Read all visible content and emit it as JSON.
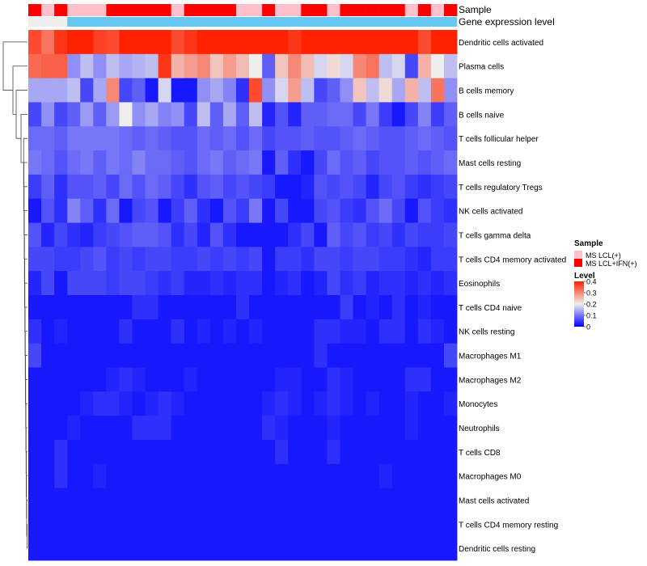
{
  "chart_data": {
    "type": "heatmap",
    "title": "",
    "annotation_tracks": {
      "sample_label": "Sample",
      "gene_label": "Gene expression level"
    },
    "sample_groups": [
      "MS LCL(+)",
      "MS LCL+IFN(+)"
    ],
    "sample_group_per_column": [
      1,
      0,
      1,
      0,
      0,
      0,
      1,
      1,
      1,
      1,
      1,
      0,
      1,
      1,
      1,
      1,
      0,
      0,
      1,
      0,
      0,
      1,
      1,
      0,
      1,
      1,
      1,
      1,
      1,
      0,
      1,
      0,
      1
    ],
    "rows": [
      "Dendritic cells activated",
      "Plasma cells",
      "B cells memory",
      "B cells naive",
      "T cells follicular helper",
      "Mast cells resting",
      "T cells regulatory  Tregs",
      "NK cells activated",
      "T cells gamma delta",
      "T cells CD4 memory activated",
      "Eosinophils",
      "T cells CD4 naive",
      "NK cells resting",
      "Macrophages M1",
      "Macrophages M2",
      "Monocytes",
      "Neutrophils",
      "T cells CD8",
      "Macrophages M0",
      "Mast cells activated",
      "T cells CD4 memory resting",
      "Dendritic cells resting"
    ],
    "values": [
      [
        0.36,
        0.32,
        0.38,
        0.44,
        0.4,
        0.37,
        0.36,
        0.4,
        0.42,
        0.4,
        0.44,
        0.36,
        0.38,
        0.4,
        0.42,
        0.4,
        0.4,
        0.44,
        0.44,
        0.44,
        0.38,
        0.4,
        0.44,
        0.44,
        0.42,
        0.42,
        0.4,
        0.44,
        0.44,
        0.42,
        0.36,
        0.4,
        0.42
      ],
      [
        0.33,
        0.34,
        0.34,
        0.12,
        0.16,
        0.12,
        0.16,
        0.14,
        0.15,
        0.16,
        0.38,
        0.26,
        0.28,
        0.3,
        0.24,
        0.28,
        0.25,
        0.2,
        0.08,
        0.24,
        0.3,
        0.25,
        0.18,
        0.22,
        0.18,
        0.3,
        0.32,
        0.16,
        0.18,
        0.06,
        0.26,
        0.2,
        0.16
      ],
      [
        0.14,
        0.14,
        0.14,
        0.16,
        0.06,
        0.14,
        0.3,
        0.06,
        0.08,
        0.02,
        0.18,
        0.02,
        0.02,
        0.12,
        0.14,
        0.11,
        0.04,
        0.36,
        0.12,
        0.18,
        0.28,
        0.16,
        0.06,
        0.08,
        0.12,
        0.24,
        0.16,
        0.22,
        0.14,
        0.26,
        0.16,
        0.32,
        0.12
      ],
      [
        0.06,
        0.12,
        0.06,
        0.08,
        0.13,
        0.08,
        0.13,
        0.2,
        0.12,
        0.14,
        0.11,
        0.12,
        0.06,
        0.16,
        0.08,
        0.14,
        0.08,
        0.16,
        0.03,
        0.07,
        0.03,
        0.08,
        0.08,
        0.09,
        0.09,
        0.06,
        0.1,
        0.05,
        0.02,
        0.06,
        0.11,
        0.05,
        0.08
      ],
      [
        0.09,
        0.09,
        0.08,
        0.1,
        0.1,
        0.1,
        0.1,
        0.09,
        0.08,
        0.09,
        0.08,
        0.07,
        0.07,
        0.09,
        0.08,
        0.09,
        0.07,
        0.09,
        0.06,
        0.07,
        0.07,
        0.08,
        0.07,
        0.07,
        0.08,
        0.09,
        0.08,
        0.07,
        0.07,
        0.08,
        0.09,
        0.08,
        0.07
      ],
      [
        0.1,
        0.09,
        0.07,
        0.09,
        0.1,
        0.08,
        0.1,
        0.09,
        0.11,
        0.09,
        0.09,
        0.08,
        0.07,
        0.09,
        0.1,
        0.08,
        0.09,
        0.1,
        0.02,
        0.08,
        0.04,
        0.02,
        0.06,
        0.09,
        0.07,
        0.08,
        0.06,
        0.07,
        0.07,
        0.08,
        0.07,
        0.08,
        0.09
      ],
      [
        0.05,
        0.08,
        0.04,
        0.07,
        0.07,
        0.08,
        0.06,
        0.09,
        0.07,
        0.09,
        0.08,
        0.06,
        0.04,
        0.07,
        0.08,
        0.06,
        0.07,
        0.06,
        0.05,
        0.02,
        0.02,
        0.03,
        0.07,
        0.06,
        0.07,
        0.06,
        0.03,
        0.06,
        0.07,
        0.05,
        0.04,
        0.05,
        0.06
      ],
      [
        0.02,
        0.07,
        0.04,
        0.11,
        0.08,
        0.04,
        0.09,
        0.02,
        0.06,
        0.07,
        0.02,
        0.05,
        0.08,
        0.04,
        0.02,
        0.07,
        0.05,
        0.1,
        0.02,
        0.06,
        0.02,
        0.02,
        0.06,
        0.07,
        0.05,
        0.04,
        0.07,
        0.09,
        0.06,
        0.02,
        0.07,
        0.05,
        0.04
      ],
      [
        0.07,
        0.03,
        0.06,
        0.04,
        0.03,
        0.05,
        0.06,
        0.07,
        0.08,
        0.08,
        0.07,
        0.04,
        0.06,
        0.03,
        0.07,
        0.04,
        0.02,
        0.02,
        0.02,
        0.02,
        0.04,
        0.06,
        0.02,
        0.08,
        0.06,
        0.07,
        0.05,
        0.06,
        0.04,
        0.06,
        0.05,
        0.05,
        0.06
      ],
      [
        0.06,
        0.06,
        0.05,
        0.05,
        0.06,
        0.07,
        0.05,
        0.06,
        0.05,
        0.06,
        0.06,
        0.05,
        0.05,
        0.06,
        0.05,
        0.06,
        0.05,
        0.06,
        0.02,
        0.05,
        0.05,
        0.04,
        0.06,
        0.06,
        0.05,
        0.06,
        0.06,
        0.05,
        0.05,
        0.04,
        0.03,
        0.05,
        0.05
      ],
      [
        0.03,
        0.06,
        0.02,
        0.06,
        0.06,
        0.06,
        0.05,
        0.06,
        0.06,
        0.05,
        0.04,
        0.05,
        0.03,
        0.03,
        0.04,
        0.03,
        0.04,
        0.04,
        0.02,
        0.03,
        0.04,
        0.02,
        0.03,
        0.06,
        0.04,
        0.05,
        0.03,
        0.04,
        0.04,
        0.03,
        0.04,
        0.03,
        0.04
      ],
      [
        0.02,
        0.02,
        0.02,
        0.02,
        0.02,
        0.02,
        0.02,
        0.02,
        0.04,
        0.04,
        0.02,
        0.02,
        0.02,
        0.02,
        0.02,
        0.02,
        0.04,
        0.02,
        0.02,
        0.02,
        0.02,
        0.02,
        0.02,
        0.02,
        0.05,
        0.02,
        0.03,
        0.02,
        0.04,
        0.02,
        0.03,
        0.02,
        0.02
      ],
      [
        0.04,
        0.02,
        0.03,
        0.02,
        0.02,
        0.02,
        0.02,
        0.04,
        0.02,
        0.02,
        0.02,
        0.04,
        0.02,
        0.03,
        0.02,
        0.03,
        0.02,
        0.03,
        0.02,
        0.02,
        0.02,
        0.02,
        0.04,
        0.04,
        0.03,
        0.03,
        0.02,
        0.04,
        0.04,
        0.02,
        0.04,
        0.03,
        0.02
      ],
      [
        0.06,
        0.02,
        0.02,
        0.02,
        0.02,
        0.02,
        0.02,
        0.02,
        0.02,
        0.02,
        0.02,
        0.02,
        0.02,
        0.02,
        0.02,
        0.02,
        0.02,
        0.02,
        0.02,
        0.02,
        0.02,
        0.02,
        0.04,
        0.02,
        0.02,
        0.02,
        0.02,
        0.02,
        0.02,
        0.02,
        0.02,
        0.02,
        0.06
      ],
      [
        0.02,
        0.02,
        0.02,
        0.02,
        0.02,
        0.02,
        0.03,
        0.04,
        0.03,
        0.02,
        0.02,
        0.02,
        0.03,
        0.02,
        0.02,
        0.02,
        0.02,
        0.02,
        0.02,
        0.03,
        0.03,
        0.02,
        0.02,
        0.04,
        0.03,
        0.02,
        0.02,
        0.02,
        0.02,
        0.04,
        0.04,
        0.02,
        0.02
      ],
      [
        0.02,
        0.02,
        0.02,
        0.02,
        0.03,
        0.04,
        0.04,
        0.03,
        0.02,
        0.03,
        0.04,
        0.03,
        0.02,
        0.02,
        0.02,
        0.02,
        0.02,
        0.02,
        0.03,
        0.04,
        0.03,
        0.02,
        0.03,
        0.04,
        0.03,
        0.02,
        0.03,
        0.02,
        0.02,
        0.03,
        0.02,
        0.02,
        0.03
      ],
      [
        0.02,
        0.02,
        0.02,
        0.03,
        0.02,
        0.02,
        0.02,
        0.02,
        0.04,
        0.04,
        0.04,
        0.02,
        0.02,
        0.02,
        0.02,
        0.02,
        0.02,
        0.02,
        0.04,
        0.03,
        0.02,
        0.02,
        0.02,
        0.03,
        0.02,
        0.02,
        0.02,
        0.02,
        0.02,
        0.03,
        0.02,
        0.02,
        0.02
      ],
      [
        0.02,
        0.02,
        0.04,
        0.02,
        0.02,
        0.02,
        0.02,
        0.02,
        0.02,
        0.02,
        0.02,
        0.02,
        0.02,
        0.02,
        0.02,
        0.02,
        0.02,
        0.02,
        0.02,
        0.04,
        0.02,
        0.02,
        0.02,
        0.04,
        0.02,
        0.02,
        0.02,
        0.02,
        0.02,
        0.02,
        0.02,
        0.02,
        0.02
      ],
      [
        0.02,
        0.02,
        0.04,
        0.02,
        0.02,
        0.03,
        0.02,
        0.02,
        0.02,
        0.02,
        0.02,
        0.02,
        0.02,
        0.02,
        0.02,
        0.02,
        0.02,
        0.02,
        0.02,
        0.02,
        0.02,
        0.02,
        0.02,
        0.02,
        0.02,
        0.02,
        0.02,
        0.03,
        0.02,
        0.02,
        0.02,
        0.02,
        0.02
      ],
      [
        0.02,
        0.02,
        0.02,
        0.02,
        0.02,
        0.02,
        0.02,
        0.02,
        0.02,
        0.02,
        0.02,
        0.02,
        0.02,
        0.02,
        0.02,
        0.02,
        0.02,
        0.02,
        0.02,
        0.02,
        0.02,
        0.02,
        0.02,
        0.02,
        0.02,
        0.02,
        0.02,
        0.02,
        0.02,
        0.02,
        0.02,
        0.02,
        0.02
      ],
      [
        0.02,
        0.02,
        0.02,
        0.02,
        0.02,
        0.02,
        0.02,
        0.02,
        0.02,
        0.02,
        0.02,
        0.02,
        0.02,
        0.02,
        0.02,
        0.02,
        0.02,
        0.02,
        0.02,
        0.02,
        0.02,
        0.02,
        0.02,
        0.02,
        0.02,
        0.02,
        0.02,
        0.02,
        0.02,
        0.02,
        0.02,
        0.02,
        0.02
      ],
      [
        0.02,
        0.02,
        0.02,
        0.02,
        0.02,
        0.02,
        0.02,
        0.02,
        0.02,
        0.02,
        0.02,
        0.02,
        0.02,
        0.02,
        0.02,
        0.02,
        0.02,
        0.02,
        0.02,
        0.02,
        0.02,
        0.02,
        0.02,
        0.02,
        0.02,
        0.02,
        0.02,
        0.02,
        0.02,
        0.02,
        0.02,
        0.02,
        0.02
      ]
    ],
    "color_scale": {
      "domain": [
        0,
        0.2,
        0.4
      ],
      "colors": [
        "#0000ff",
        "#eeeeee",
        "#ff2200"
      ]
    },
    "gene_track_color": "#64c8f0",
    "gene_track_left_color": "#eeeeee",
    "sample_colors": [
      "#ffc0cb",
      "#ff0000"
    ],
    "legend": {
      "sample_title": "Sample",
      "sample_entries": [
        "MS LCL(+)",
        "MS LCL+IFN(+)"
      ],
      "level_title": "Level",
      "level_ticks": [
        "0.4",
        "0.3",
        "0.2",
        "0.1",
        "0"
      ],
      "level_tick_values": [
        0.4,
        0.3,
        0.2,
        0.1,
        0
      ]
    }
  }
}
